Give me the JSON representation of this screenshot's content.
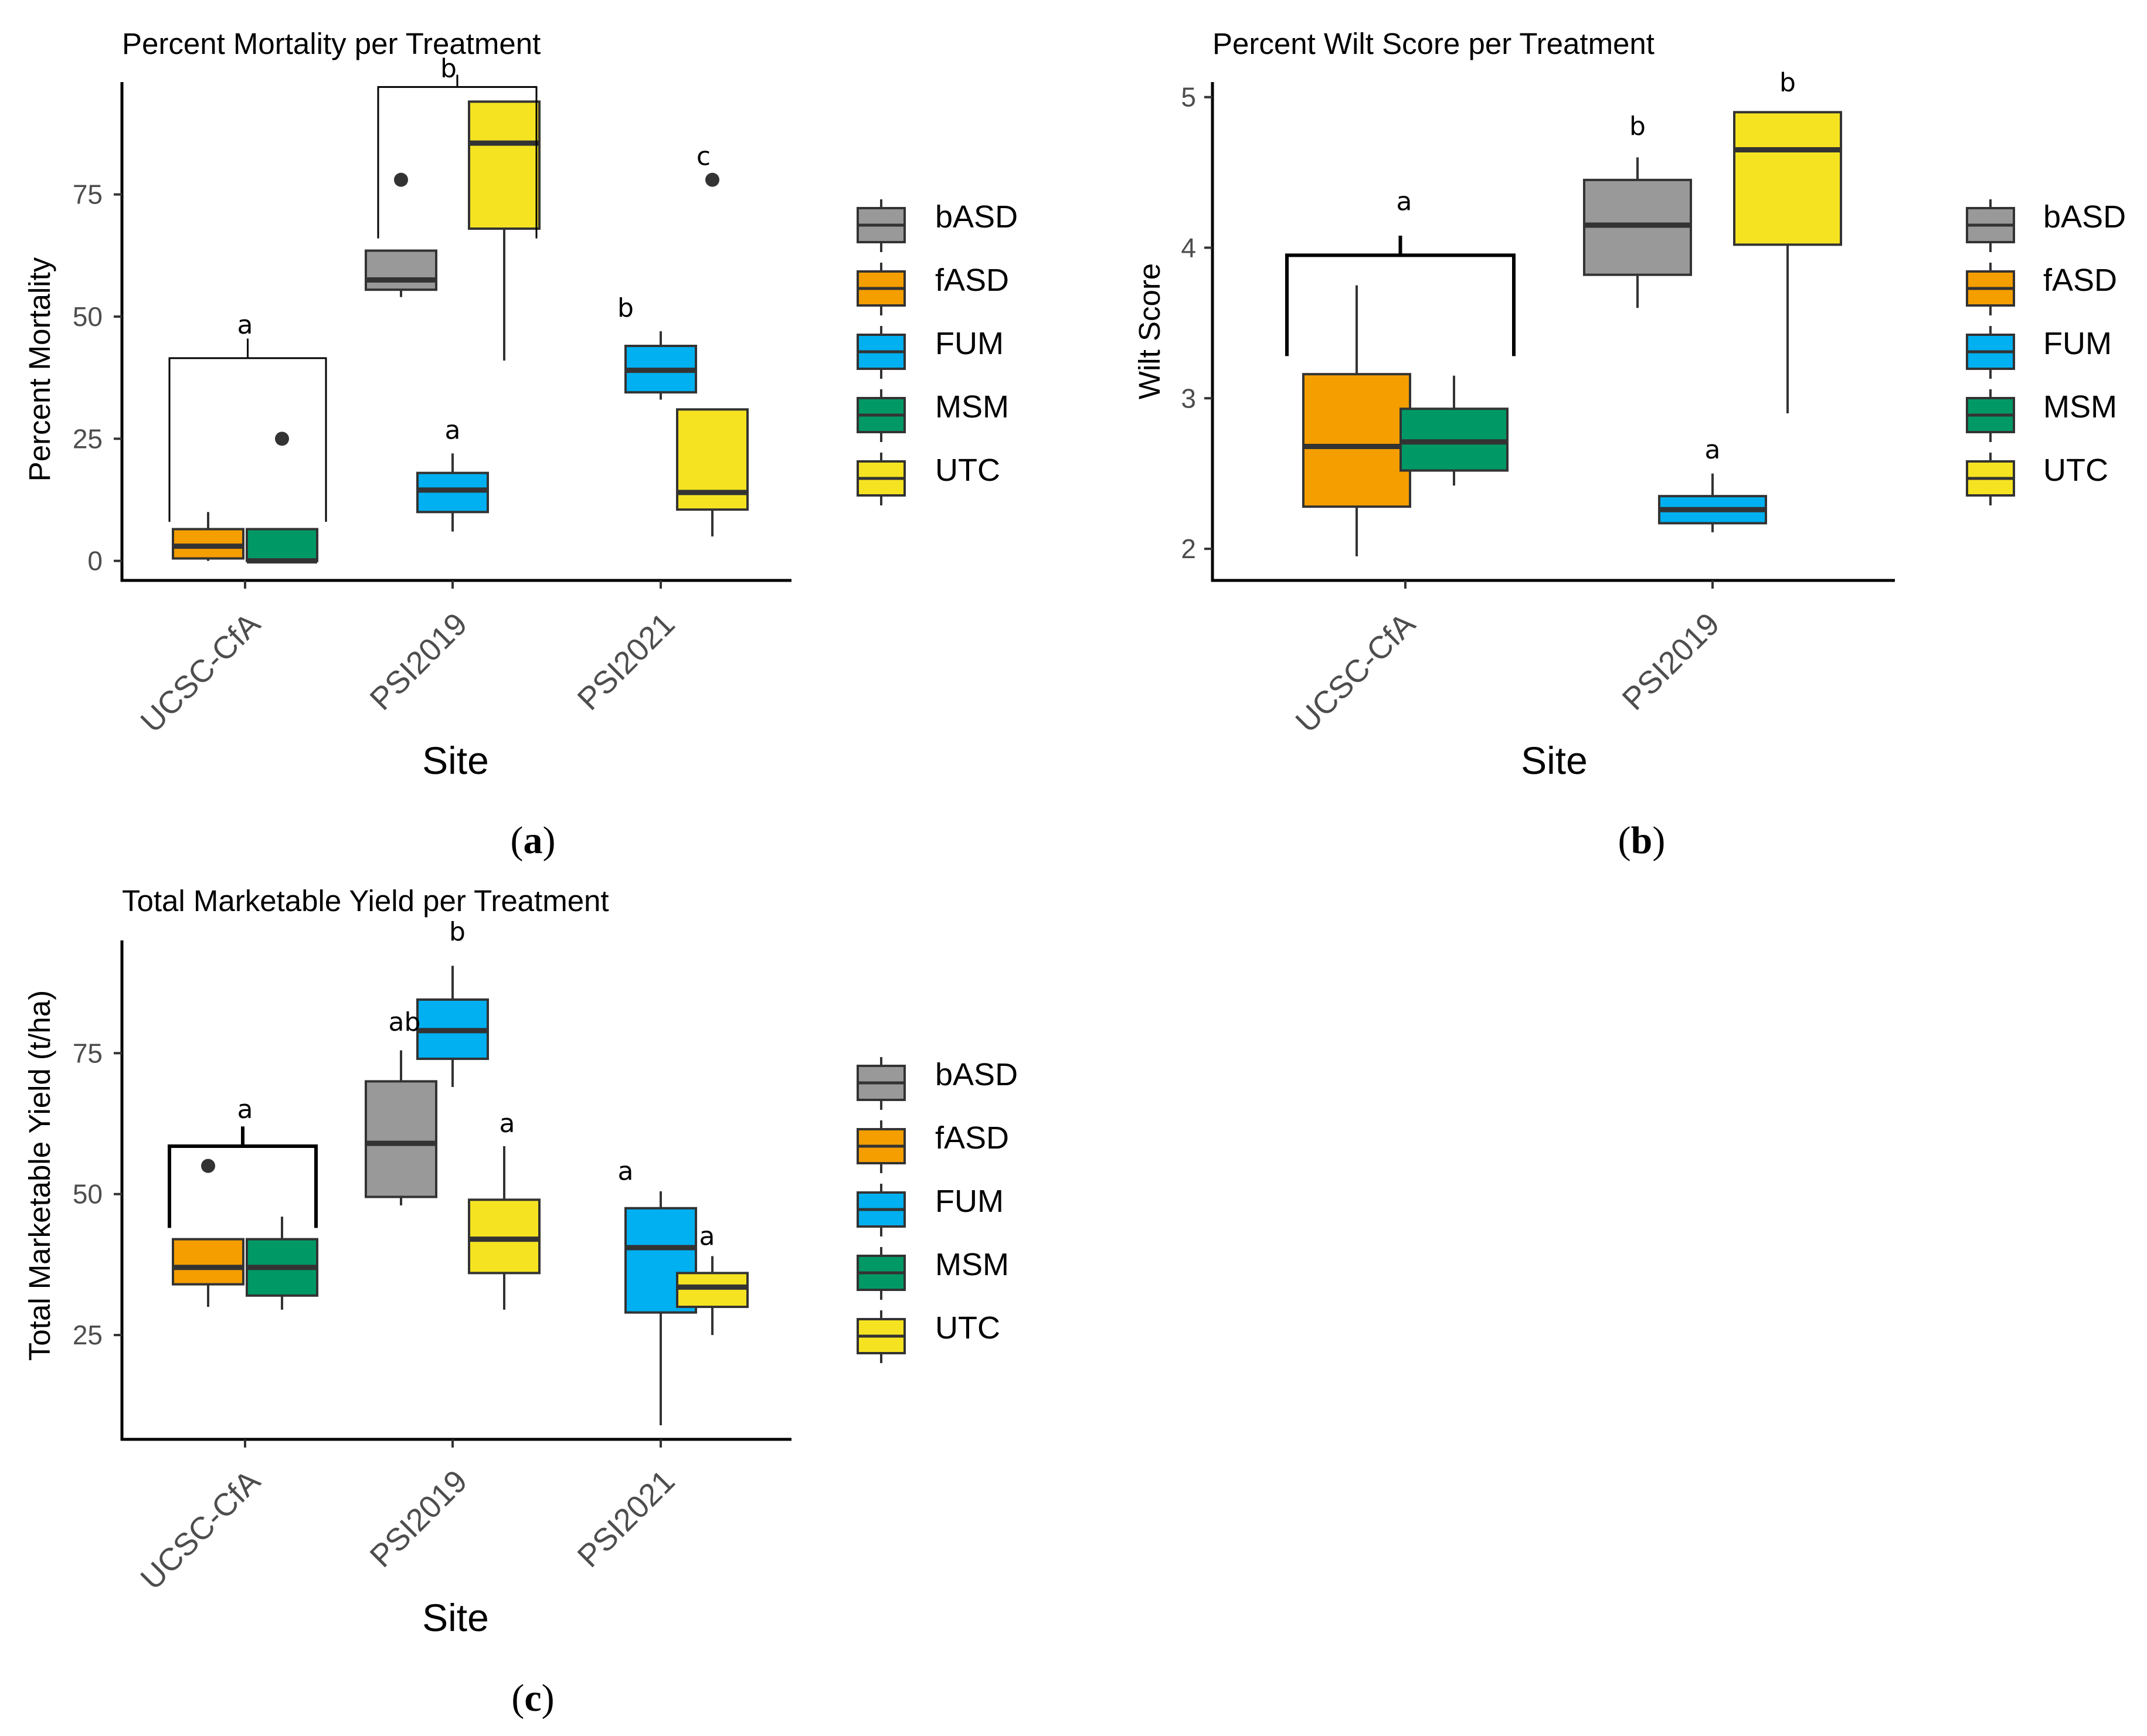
{
  "legend": {
    "entries": [
      "bASD",
      "fASD",
      "FUM",
      "MSM",
      "UTC"
    ]
  },
  "colors": {
    "bASD": "#999999",
    "fASD": "#f59e00",
    "FUM": "#00b0f0",
    "MSM": "#009966",
    "UTC": "#f5e322",
    "box_line": "#333333",
    "axis": "#000000"
  },
  "chart_data": [
    {
      "type": "boxplot",
      "panel_label": "a",
      "title": "Percent Mortality per Treatment",
      "xlabel": "Site",
      "ylabel": "Percent Mortality",
      "categories": [
        "UCSC-CfA",
        "PSI2019",
        "PSI2021"
      ],
      "ylim": [
        -4,
        98
      ],
      "yticks": [
        0,
        25,
        50,
        75
      ],
      "boxes": [
        {
          "site": "UCSC-CfA",
          "treatment": "fASD",
          "min": 0,
          "q1": 0.5,
          "median": 3,
          "q3": 6.5,
          "max": 10,
          "outliers": []
        },
        {
          "site": "UCSC-CfA",
          "treatment": "MSM",
          "min": 0,
          "q1": 0,
          "median": 0,
          "q3": 6.5,
          "max": 6.5,
          "outliers": [
            25
          ]
        },
        {
          "site": "PSI2019",
          "treatment": "bASD",
          "min": 54,
          "q1": 55.5,
          "median": 57.5,
          "q3": 63.5,
          "max": 63.5,
          "outliers": [
            78
          ]
        },
        {
          "site": "PSI2019",
          "treatment": "FUM",
          "min": 6,
          "q1": 10,
          "median": 14.5,
          "q3": 18,
          "max": 22,
          "outliers": []
        },
        {
          "site": "PSI2019",
          "treatment": "UTC",
          "min": 41,
          "q1": 68,
          "median": 85.5,
          "q3": 94,
          "max": 94,
          "outliers": []
        },
        {
          "site": "PSI2021",
          "treatment": "FUM",
          "min": 33,
          "q1": 34.5,
          "median": 39,
          "q3": 44,
          "max": 47,
          "outliers": []
        },
        {
          "site": "PSI2021",
          "treatment": "UTC",
          "min": 5,
          "q1": 10.5,
          "median": 14,
          "q3": 31,
          "max": 31,
          "outliers": [
            78
          ]
        }
      ],
      "annotations": [
        {
          "text": "a",
          "target": "UCSC-CfA fASD + MSM",
          "bracket": true
        },
        {
          "text": "b",
          "target": "PSI2019 bASD + UTC",
          "bracket": true
        },
        {
          "text": "a",
          "target": "PSI2019 FUM",
          "bracket": false
        },
        {
          "text": "b",
          "target": "PSI2021 FUM",
          "bracket": false
        },
        {
          "text": "c",
          "target": "PSI2021 UTC",
          "bracket": false
        }
      ]
    },
    {
      "type": "boxplot",
      "panel_label": "b",
      "title": "Percent Wilt Score per Treatment",
      "xlabel": "Site",
      "ylabel": "Wilt Score",
      "categories": [
        "UCSC-CfA",
        "PSI2019"
      ],
      "ylim": [
        1.79,
        5.1
      ],
      "yticks": [
        2,
        3,
        4,
        5
      ],
      "boxes": [
        {
          "site": "UCSC-CfA",
          "treatment": "fASD",
          "min": 1.95,
          "q1": 2.28,
          "median": 2.68,
          "q3": 3.16,
          "max": 3.75,
          "outliers": []
        },
        {
          "site": "UCSC-CfA",
          "treatment": "MSM",
          "min": 2.42,
          "q1": 2.52,
          "median": 2.71,
          "q3": 2.93,
          "max": 3.15,
          "outliers": []
        },
        {
          "site": "PSI2019",
          "treatment": "bASD",
          "min": 3.6,
          "q1": 3.82,
          "median": 4.15,
          "q3": 4.45,
          "max": 4.6,
          "outliers": []
        },
        {
          "site": "PSI2019",
          "treatment": "FUM",
          "min": 2.11,
          "q1": 2.17,
          "median": 2.26,
          "q3": 2.35,
          "max": 2.5,
          "outliers": []
        },
        {
          "site": "PSI2019",
          "treatment": "UTC",
          "min": 2.9,
          "q1": 4.02,
          "median": 4.65,
          "q3": 4.9,
          "max": 4.9,
          "outliers": []
        }
      ],
      "annotations": [
        {
          "text": "a",
          "target": "UCSC-CfA fASD + MSM",
          "bracket": true
        },
        {
          "text": "b",
          "target": "PSI2019 bASD",
          "bracket": false
        },
        {
          "text": "a",
          "target": "PSI2019 FUM",
          "bracket": false
        },
        {
          "text": "b",
          "target": "PSI2019 UTC",
          "bracket": false
        }
      ]
    },
    {
      "type": "boxplot",
      "panel_label": "c",
      "title": "Total Marketable Yield per Treatment",
      "xlabel": "Site",
      "ylabel": "Total Marketable Yield (t/ha)",
      "categories": [
        "UCSC-CfA",
        "PSI2019",
        "PSI2021"
      ],
      "ylim": [
        6.5,
        95
      ],
      "yticks": [
        25,
        50,
        75
      ],
      "boxes": [
        {
          "site": "UCSC-CfA",
          "treatment": "fASD",
          "min": 30,
          "q1": 34,
          "median": 37,
          "q3": 42,
          "max": 42,
          "outliers": [
            55
          ]
        },
        {
          "site": "UCSC-CfA",
          "treatment": "MSM",
          "min": 29.5,
          "q1": 32,
          "median": 37,
          "q3": 42,
          "max": 46,
          "outliers": []
        },
        {
          "site": "PSI2019",
          "treatment": "bASD",
          "min": 48,
          "q1": 49.5,
          "median": 59,
          "q3": 70,
          "max": 75.5,
          "outliers": []
        },
        {
          "site": "PSI2019",
          "treatment": "FUM",
          "min": 69,
          "q1": 74,
          "median": 79,
          "q3": 84.5,
          "max": 90.5,
          "outliers": []
        },
        {
          "site": "PSI2019",
          "treatment": "UTC",
          "min": 29.5,
          "q1": 36,
          "median": 42,
          "q3": 49,
          "max": 58.5,
          "outliers": []
        },
        {
          "site": "PSI2021",
          "treatment": "FUM",
          "min": 9,
          "q1": 29,
          "median": 40.5,
          "q3": 47.5,
          "max": 50.5,
          "outliers": []
        },
        {
          "site": "PSI2021",
          "treatment": "UTC",
          "min": 25,
          "q1": 30,
          "median": 33.5,
          "q3": 36,
          "max": 39,
          "outliers": []
        }
      ],
      "annotations": [
        {
          "text": "a",
          "target": "UCSC-CfA fASD + MSM",
          "bracket": true
        },
        {
          "text": "ab",
          "target": "PSI2019 bASD",
          "bracket": false
        },
        {
          "text": "b",
          "target": "PSI2019 FUM",
          "bracket": false
        },
        {
          "text": "a",
          "target": "PSI2019 UTC",
          "bracket": false
        },
        {
          "text": "a",
          "target": "PSI2021 FUM",
          "bracket": false
        },
        {
          "text": "a",
          "target": "PSI2021 UTC",
          "bracket": false
        }
      ]
    }
  ]
}
